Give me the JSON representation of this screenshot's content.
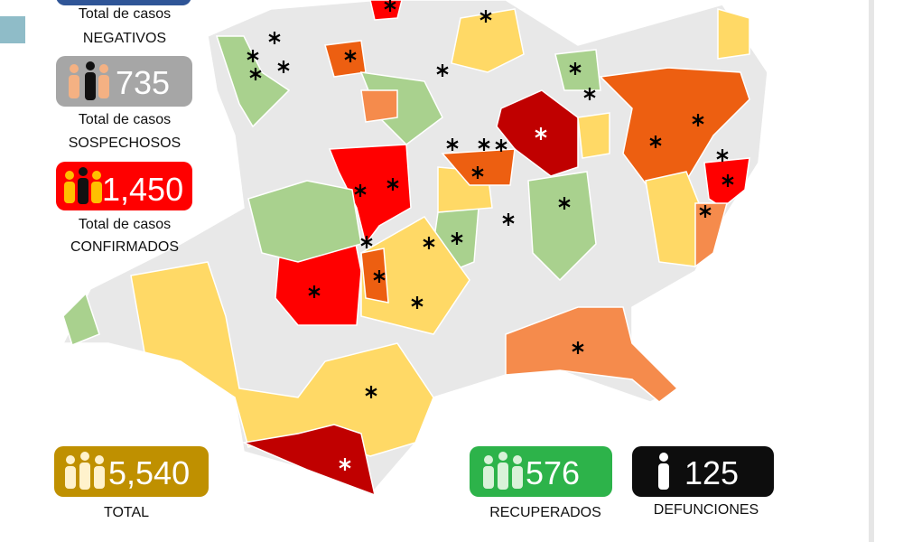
{
  "cards": {
    "negativos": {
      "caption": "Total de casos",
      "label": "NEGATIVOS"
    },
    "sospechosos": {
      "value": "735",
      "caption": "Total de casos",
      "label": "SOSPECHOSOS"
    },
    "confirmados": {
      "value": "1,450",
      "caption": "Total de casos",
      "label": "CONFIRMADOS"
    },
    "total": {
      "value": "5,540",
      "label": "TOTAL"
    },
    "recuperados": {
      "value": "576",
      "label": "RECUPERADOS"
    },
    "defunciones": {
      "value": "125",
      "label": "DEFUNCIONES"
    }
  }
}
